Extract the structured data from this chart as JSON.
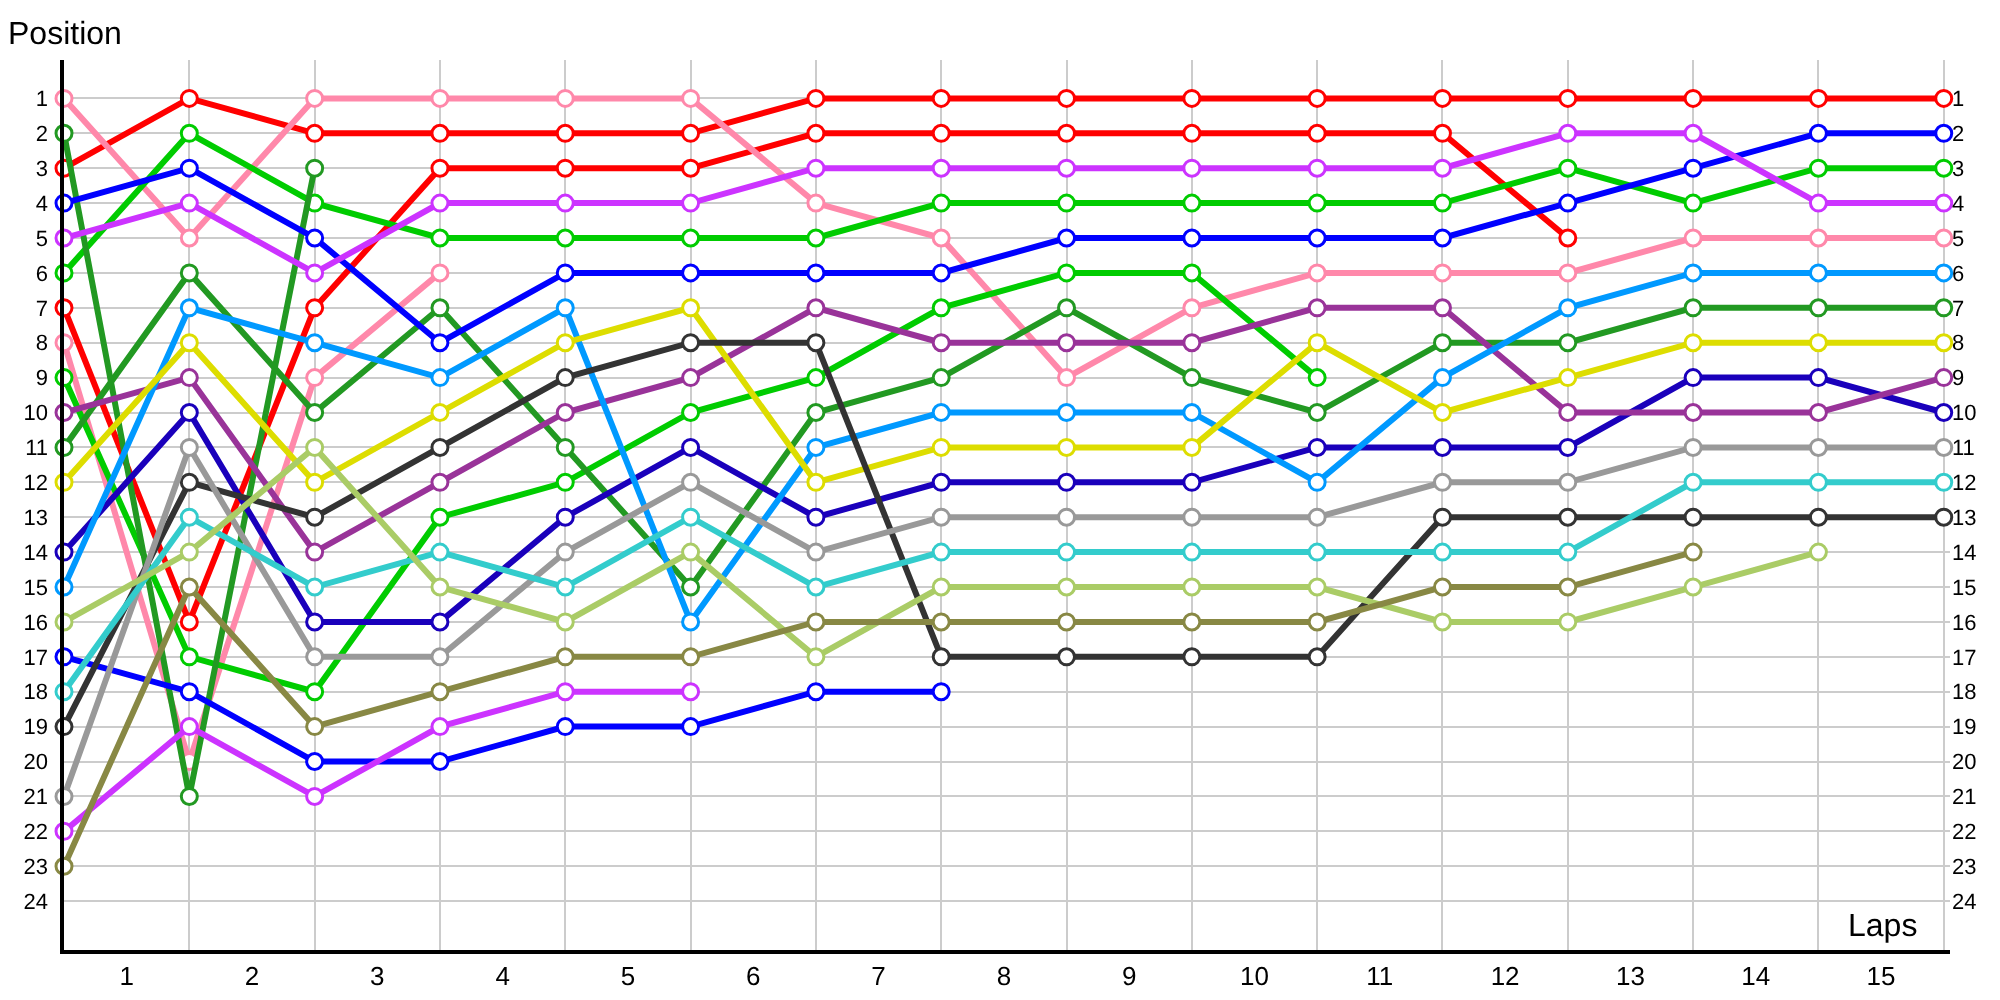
{
  "chart_data": {
    "type": "line",
    "xlabel": "Laps",
    "ylabel": "Position",
    "marker": "circle",
    "line_style": "solid",
    "grid": true,
    "x": [
      0,
      1,
      2,
      3,
      4,
      5,
      6,
      7,
      8,
      9,
      10,
      11,
      12,
      13,
      14,
      15
    ],
    "xlim": [
      0,
      15.05
    ],
    "xticks": [
      {
        "value": 0.5,
        "label": "1"
      },
      {
        "value": 1.5,
        "label": "2"
      },
      {
        "value": 2.5,
        "label": "3"
      },
      {
        "value": 3.5,
        "label": "4"
      },
      {
        "value": 4.5,
        "label": "5"
      },
      {
        "value": 5.5,
        "label": "6"
      },
      {
        "value": 6.5,
        "label": "7"
      },
      {
        "value": 7.5,
        "label": "8"
      },
      {
        "value": 8.5,
        "label": "9"
      },
      {
        "value": 9.5,
        "label": "10"
      },
      {
        "value": 10.5,
        "label": "11"
      },
      {
        "value": 11.5,
        "label": "12"
      },
      {
        "value": 12.5,
        "label": "13"
      },
      {
        "value": 13.5,
        "label": "14"
      },
      {
        "value": 14.5,
        "label": "15"
      }
    ],
    "ylim": [
      25.4,
      -0.1
    ],
    "yticks": [
      1,
      2,
      3,
      4,
      5,
      6,
      7,
      8,
      9,
      10,
      11,
      12,
      13,
      14,
      15,
      16,
      17,
      18,
      19,
      20,
      21,
      22,
      23,
      24
    ],
    "y2lim": [
      25.4,
      -0.1
    ],
    "y2ticks": [
      1,
      2,
      3,
      4,
      5,
      6,
      7,
      8,
      9,
      10,
      11,
      12,
      13,
      14,
      15,
      16,
      17,
      18,
      19,
      20,
      21,
      22,
      23,
      24
    ],
    "series": [
      {
        "color": "#ff0000",
        "values": [
          3,
          1,
          2,
          2,
          2,
          2,
          1,
          1,
          1,
          1,
          1,
          1,
          1,
          1,
          1,
          1
        ]
      },
      {
        "color": "#ff0000",
        "values": [
          7,
          16,
          7,
          3,
          3,
          3,
          2,
          2,
          2,
          2,
          2,
          2,
          5,
          null,
          null,
          null
        ]
      },
      {
        "color": "#ff88aa",
        "values": [
          1,
          5,
          1,
          1,
          1,
          1,
          4,
          5,
          9,
          7,
          6,
          6,
          6,
          5,
          5,
          5
        ]
      },
      {
        "color": "#ff88aa",
        "values": [
          8,
          20,
          9,
          6,
          null,
          null,
          null,
          null,
          null,
          null,
          null,
          null,
          null,
          null,
          null,
          null
        ]
      },
      {
        "color": "#00cc00",
        "values": [
          6,
          2,
          4,
          5,
          5,
          5,
          5,
          4,
          4,
          4,
          4,
          4,
          3,
          4,
          3,
          3
        ]
      },
      {
        "color": "#00cc00",
        "values": [
          9,
          17,
          18,
          13,
          12,
          10,
          9,
          7,
          6,
          6,
          9,
          null,
          null,
          null,
          null,
          null
        ]
      },
      {
        "color": "#229922",
        "values": [
          11,
          6,
          10,
          7,
          11,
          15,
          10,
          9,
          7,
          9,
          10,
          8,
          8,
          7,
          7,
          7
        ]
      },
      {
        "color": "#229922",
        "values": [
          2,
          21,
          3,
          null,
          null,
          null,
          null,
          null,
          null,
          null,
          null,
          null,
          null,
          null,
          null,
          null
        ]
      },
      {
        "color": "#0000ff",
        "values": [
          4,
          3,
          5,
          8,
          6,
          6,
          6,
          6,
          5,
          5,
          5,
          5,
          4,
          3,
          2,
          2
        ]
      },
      {
        "color": "#0000ff",
        "values": [
          17,
          18,
          20,
          20,
          19,
          19,
          18,
          18,
          null,
          null,
          null,
          null,
          null,
          null,
          null,
          null
        ]
      },
      {
        "color": "#1a00bb",
        "values": [
          14,
          10,
          16,
          16,
          13,
          11,
          13,
          12,
          12,
          12,
          11,
          11,
          11,
          9,
          9,
          10
        ]
      },
      {
        "color": "#cc33ff",
        "values": [
          5,
          4,
          6,
          4,
          4,
          4,
          3,
          3,
          3,
          3,
          3,
          3,
          2,
          2,
          4,
          4
        ]
      },
      {
        "color": "#cc33ff",
        "values": [
          22,
          19,
          21,
          19,
          18,
          18,
          null,
          null,
          null,
          null,
          null,
          null,
          null,
          null,
          null,
          null
        ]
      },
      {
        "color": "#993399",
        "values": [
          10,
          9,
          14,
          12,
          10,
          9,
          7,
          8,
          8,
          8,
          7,
          7,
          10,
          10,
          10,
          9
        ]
      },
      {
        "color": "#0099ff",
        "values": [
          15,
          7,
          8,
          9,
          7,
          16,
          11,
          10,
          10,
          10,
          12,
          9,
          7,
          6,
          6,
          6
        ]
      },
      {
        "color": "#dddd00",
        "values": [
          12,
          8,
          12,
          10,
          8,
          7,
          12,
          11,
          11,
          11,
          8,
          10,
          9,
          8,
          8,
          8
        ]
      },
      {
        "color": "#333333",
        "values": [
          19,
          12,
          13,
          11,
          9,
          8,
          8,
          17,
          17,
          17,
          17,
          13,
          13,
          13,
          13,
          13
        ]
      },
      {
        "color": "#999999",
        "values": [
          21,
          11,
          17,
          17,
          14,
          12,
          14,
          13,
          13,
          13,
          13,
          12,
          12,
          11,
          11,
          11
        ]
      },
      {
        "color": "#33cccc",
        "values": [
          18,
          13,
          15,
          14,
          15,
          13,
          15,
          14,
          14,
          14,
          14,
          14,
          14,
          12,
          12,
          12
        ]
      },
      {
        "color": "#aacc66",
        "values": [
          16,
          14,
          11,
          15,
          16,
          14,
          17,
          15,
          15,
          15,
          15,
          16,
          16,
          15,
          14,
          null
        ]
      },
      {
        "color": "#888844",
        "values": [
          23,
          15,
          19,
          18,
          17,
          17,
          16,
          16,
          16,
          16,
          16,
          15,
          15,
          14,
          null,
          null
        ]
      }
    ]
  }
}
